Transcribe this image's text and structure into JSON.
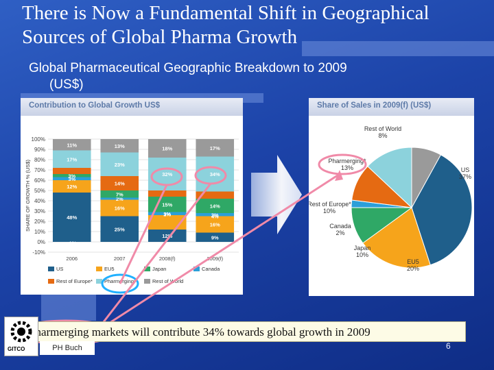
{
  "slide": {
    "title": "There is Now a Fundamental Shift in Geographical Sources of Global Pharma Growth",
    "subtitle_line1": "Global Pharmaceutical Geographic Breakdown to 2009",
    "subtitle_line2": "(US$)",
    "footer_text": "Pharmerging markets will contribute 34% towards global growth in 2009",
    "author": "PH Buch",
    "logo_text": "GITCO",
    "page_number": "6"
  },
  "chart_data": [
    {
      "type": "bar",
      "stacked": true,
      "title": "Contribution to Global Growth US$",
      "ylabel": "SHARE OF GROWTH % (US$)",
      "ylim": [
        -10,
        100
      ],
      "yticks": [
        "-10%",
        "0%",
        "10%",
        "20%",
        "30%",
        "40%",
        "50%",
        "60%",
        "70%",
        "80%",
        "90%",
        "100%"
      ],
      "categories": [
        "2006",
        "2007",
        "2008(f)",
        "2009(f)"
      ],
      "series": [
        {
          "name": "US",
          "color": "#1f5f8b",
          "values": [
            48,
            25,
            12,
            9
          ],
          "labels": [
            "48%",
            "25%",
            "12%",
            "9%"
          ]
        },
        {
          "name": "EU5",
          "color": "#f6a41b",
          "values": [
            12,
            16,
            14,
            16
          ],
          "labels": [
            "12%",
            "16%",
            "",
            "16%"
          ]
        },
        {
          "name": "Canada",
          "color": "#2b9fd8",
          "values": [
            3,
            2,
            3,
            3
          ],
          "labels": [
            "3%",
            "2%",
            "3%",
            "3%"
          ]
        },
        {
          "name": "Japan",
          "color": "#2fa866",
          "values": [
            3,
            7,
            15,
            14
          ],
          "labels": [
            "3%",
            "7%",
            "15%",
            "14%"
          ]
        },
        {
          "name": "Rest of Europe*",
          "color": "#e56a12",
          "values": [
            6,
            14,
            6,
            7
          ],
          "labels": [
            "",
            "14%",
            "",
            ""
          ]
        },
        {
          "name": "Pharmerging*",
          "color": "#8cd2dc",
          "values": [
            17,
            23,
            32,
            34
          ],
          "labels": [
            "17%",
            "23%",
            "32%",
            "34%"
          ]
        },
        {
          "name": "Rest of World",
          "color": "#9a9a9a",
          "values": [
            11,
            13,
            18,
            17
          ],
          "labels": [
            "11%",
            "13%",
            "18%",
            "17%"
          ]
        }
      ],
      "extra_labels": [
        {
          "category": "2006",
          "value": -1,
          "label": "-1%"
        },
        {
          "category": "2009(f)",
          "value": 25,
          "label": "4%"
        },
        {
          "category": "2008(f)",
          "value": 27,
          "label": "2%"
        }
      ],
      "legend": "bottom",
      "grid": true
    },
    {
      "type": "pie",
      "title": "Share of Sales in 2009(f) (US$)",
      "slices": [
        {
          "name": "US",
          "value": 37,
          "label": "37%",
          "color": "#1f5f8b"
        },
        {
          "name": "EU5",
          "value": 20,
          "label": "20%",
          "color": "#f6a41b"
        },
        {
          "name": "Japan",
          "value": 10,
          "label": "10%",
          "color": "#2fa866"
        },
        {
          "name": "Canada",
          "value": 2,
          "label": "2%",
          "color": "#2b9fd8"
        },
        {
          "name": "Rest of Europe*",
          "value": 10,
          "label": "10%",
          "color": "#e56a12"
        },
        {
          "name": "Pharmerging*",
          "value": 13,
          "label": "13%",
          "color": "#8cd2dc"
        },
        {
          "name": "Rest of World",
          "value": 8,
          "label": "8%",
          "color": "#9a9a9a"
        }
      ]
    }
  ],
  "colors": {
    "background": "#1c43a8",
    "highlight_pink": "#f08aa8",
    "highlight_blue": "#20b0ff",
    "arrow_grey": "#ffffff"
  }
}
